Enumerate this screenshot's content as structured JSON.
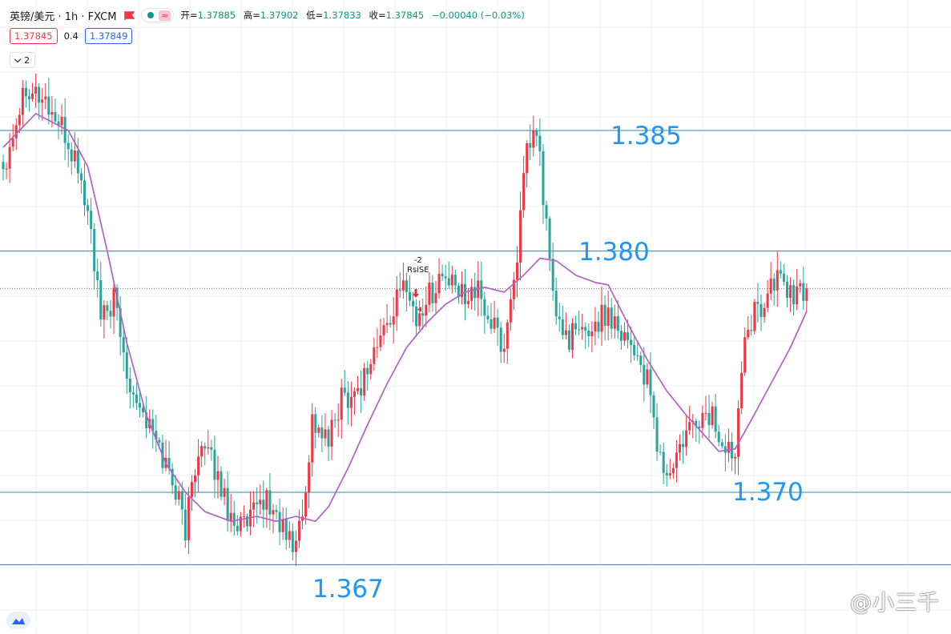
{
  "header": {
    "symbol": "英镑/美元 · 1h · FXCM",
    "approx": "≈",
    "open_label": "开=",
    "open": "1.37885",
    "high_label": "高=",
    "high": "1.37902",
    "low_label": "低=",
    "low": "1.37833",
    "close_label": "收=",
    "close": "1.37845",
    "change": "−0.00040 (−0.03%)"
  },
  "quote": {
    "bid": "1.37845",
    "spread": "0.4",
    "ask": "1.37849"
  },
  "indicator_toggle": "2",
  "signal": {
    "count": "-2",
    "name": "RsiSE"
  },
  "watermark": "@小三千",
  "levels": [
    {
      "value": 1.385,
      "label": "1.385"
    },
    {
      "value": 1.38,
      "label": "1.380"
    },
    {
      "value": 1.37,
      "label": "1.370"
    },
    {
      "value": 1.367,
      "label": "1.367"
    }
  ],
  "chart_data": {
    "type": "candlestick",
    "title": "",
    "xlabel": "",
    "ylabel": "",
    "ylim": [
      1.3662,
      1.3898
    ],
    "current_price": 1.37845,
    "candle_up_color": "#f23645",
    "candle_down_color": "#26a69a",
    "ma_color": "#b460c6",
    "level_line_color": "#1e90a8",
    "waypoints": [
      [
        0,
        1.3835
      ],
      [
        7,
        1.387
      ],
      [
        13,
        1.3862
      ],
      [
        18,
        1.385
      ],
      [
        23,
        1.3835
      ],
      [
        27,
        1.3808
      ],
      [
        30,
        1.377
      ],
      [
        34,
        1.378
      ],
      [
        38,
        1.375
      ],
      [
        44,
        1.373
      ],
      [
        49,
        1.3715
      ],
      [
        53,
        1.3702
      ],
      [
        56,
        1.3685
      ],
      [
        60,
        1.372
      ],
      [
        65,
        1.371
      ],
      [
        70,
        1.369
      ],
      [
        75,
        1.3685
      ],
      [
        80,
        1.3698
      ],
      [
        84,
        1.369
      ],
      [
        89,
        1.3677
      ],
      [
        92,
        1.369
      ],
      [
        95,
        1.373
      ],
      [
        100,
        1.372
      ],
      [
        104,
        1.374
      ],
      [
        109,
        1.3742
      ],
      [
        113,
        1.3755
      ],
      [
        118,
        1.377
      ],
      [
        124,
        1.3788
      ],
      [
        127,
        1.377
      ],
      [
        130,
        1.378
      ],
      [
        135,
        1.379
      ],
      [
        140,
        1.3782
      ],
      [
        145,
        1.3785
      ],
      [
        150,
        1.377
      ],
      [
        154,
        1.376
      ],
      [
        158,
        1.38
      ],
      [
        161,
        1.384
      ],
      [
        164,
        1.385
      ],
      [
        167,
        1.381
      ],
      [
        170,
        1.377
      ],
      [
        174,
        1.3765
      ],
      [
        178,
        1.3765
      ],
      [
        182,
        1.377
      ],
      [
        186,
        1.3775
      ],
      [
        190,
        1.3768
      ],
      [
        194,
        1.376
      ],
      [
        198,
        1.3745
      ],
      [
        201,
        1.372
      ],
      [
        204,
        1.3705
      ],
      [
        209,
        1.372
      ],
      [
        213,
        1.373
      ],
      [
        218,
        1.3732
      ],
      [
        222,
        1.3715
      ],
      [
        225,
        1.372
      ],
      [
        228,
        1.377
      ],
      [
        232,
        1.3775
      ],
      [
        236,
        1.3785
      ],
      [
        239,
        1.379
      ],
      [
        243,
        1.378
      ],
      [
        247,
        1.3784
      ]
    ],
    "ma_series": [
      [
        0,
        1.3843
      ],
      [
        10,
        1.3857
      ],
      [
        20,
        1.385
      ],
      [
        26,
        1.3835
      ],
      [
        32,
        1.38
      ],
      [
        38,
        1.3762
      ],
      [
        44,
        1.3732
      ],
      [
        50,
        1.3712
      ],
      [
        56,
        1.37
      ],
      [
        62,
        1.3692
      ],
      [
        70,
        1.3688
      ],
      [
        78,
        1.369
      ],
      [
        84,
        1.3688
      ],
      [
        90,
        1.369
      ],
      [
        96,
        1.3688
      ],
      [
        100,
        1.3694
      ],
      [
        106,
        1.371
      ],
      [
        112,
        1.3728
      ],
      [
        118,
        1.3745
      ],
      [
        124,
        1.376
      ],
      [
        130,
        1.377
      ],
      [
        136,
        1.3778
      ],
      [
        142,
        1.3783
      ],
      [
        148,
        1.3785
      ],
      [
        154,
        1.3783
      ],
      [
        160,
        1.379
      ],
      [
        165,
        1.3797
      ],
      [
        170,
        1.3796
      ],
      [
        176,
        1.379
      ],
      [
        182,
        1.3787
      ],
      [
        186,
        1.3786
      ],
      [
        192,
        1.377
      ],
      [
        198,
        1.3755
      ],
      [
        204,
        1.3742
      ],
      [
        210,
        1.3732
      ],
      [
        216,
        1.3723
      ],
      [
        220,
        1.3717
      ],
      [
        225,
        1.3718
      ],
      [
        230,
        1.373
      ],
      [
        236,
        1.3745
      ],
      [
        242,
        1.376
      ],
      [
        247,
        1.3775
      ]
    ]
  }
}
